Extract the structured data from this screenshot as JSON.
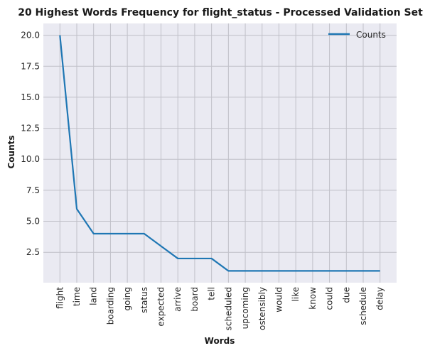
{
  "chart_data": {
    "type": "line",
    "title": "20 Highest Words Frequency for flight_status - Processed Validation Set",
    "xlabel": "Words",
    "ylabel": "Counts",
    "categories": [
      "flight",
      "time",
      "land",
      "boarding",
      "going",
      "status",
      "expected",
      "arrive",
      "board",
      "tell",
      "scheduled",
      "upcoming",
      "ostensibly",
      "would",
      "like",
      "know",
      "could",
      "due",
      "schedule",
      "delay"
    ],
    "series": [
      {
        "name": "Counts",
        "values": [
          20,
          6,
          4,
          4,
          4,
          4,
          3,
          2,
          2,
          2,
          1,
          1,
          1,
          1,
          1,
          1,
          1,
          1,
          1,
          1
        ]
      }
    ],
    "ylim": [
      0.05,
      20.95
    ],
    "yticks": [
      2.5,
      5.0,
      7.5,
      10.0,
      12.5,
      15.0,
      17.5,
      20.0
    ],
    "ytick_labels": [
      "2.5",
      "5.0",
      "7.5",
      "10.0",
      "12.5",
      "15.0",
      "17.5",
      "20.0"
    ],
    "grid": true,
    "legend_position": "top-right"
  },
  "colors": {
    "plot_background": "#eaeaf2",
    "grid": "#c0c0c8",
    "line": "#1f77b4"
  }
}
